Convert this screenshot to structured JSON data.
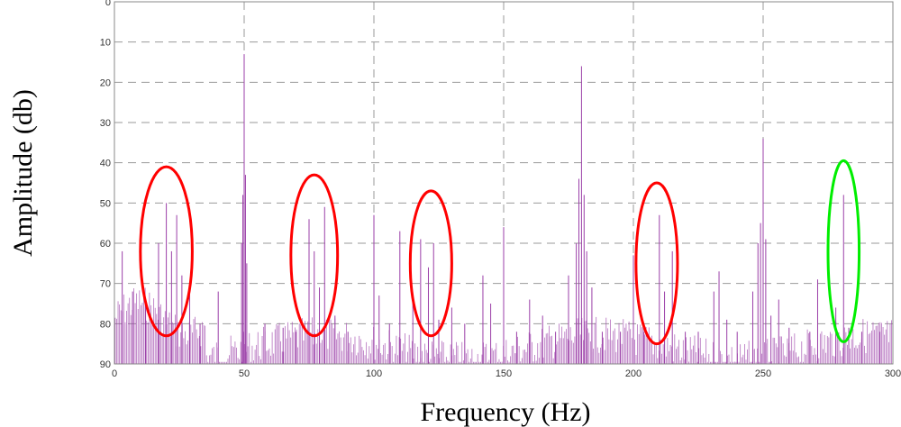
{
  "chart_data": {
    "type": "line",
    "title": "",
    "xlabel": "Frequency (Hz)",
    "ylabel": "Amplitude (db)",
    "xlim": [
      0,
      300
    ],
    "ylim": [
      0,
      90
    ],
    "y_inverted": true,
    "grid": true,
    "x_ticks": [
      "0",
      "50",
      "100",
      "150",
      "200",
      "250",
      "300"
    ],
    "y_ticks": [
      "0",
      "10",
      "20",
      "30",
      "40",
      "50",
      "60",
      "70",
      "80",
      "90"
    ],
    "series_color": "#9b3fa8",
    "peaks": [
      {
        "x": 3,
        "y": 62
      },
      {
        "x": 7,
        "y": 72
      },
      {
        "x": 12,
        "y": 74
      },
      {
        "x": 17,
        "y": 60
      },
      {
        "x": 20,
        "y": 50
      },
      {
        "x": 22,
        "y": 62
      },
      {
        "x": 24,
        "y": 53
      },
      {
        "x": 26,
        "y": 68
      },
      {
        "x": 29,
        "y": 72
      },
      {
        "x": 33,
        "y": 80
      },
      {
        "x": 40,
        "y": 72
      },
      {
        "x": 49,
        "y": 60
      },
      {
        "x": 49.5,
        "y": 48
      },
      {
        "x": 50,
        "y": 13
      },
      {
        "x": 50.5,
        "y": 43
      },
      {
        "x": 51,
        "y": 65
      },
      {
        "x": 58,
        "y": 80
      },
      {
        "x": 65,
        "y": 81
      },
      {
        "x": 70,
        "y": 82
      },
      {
        "x": 75,
        "y": 54
      },
      {
        "x": 77,
        "y": 62
      },
      {
        "x": 79,
        "y": 71
      },
      {
        "x": 81,
        "y": 51
      },
      {
        "x": 85,
        "y": 78
      },
      {
        "x": 90,
        "y": 82
      },
      {
        "x": 100,
        "y": 53
      },
      {
        "x": 102,
        "y": 73
      },
      {
        "x": 106,
        "y": 80
      },
      {
        "x": 110,
        "y": 57
      },
      {
        "x": 115,
        "y": 74
      },
      {
        "x": 118,
        "y": 59
      },
      {
        "x": 121,
        "y": 66
      },
      {
        "x": 123,
        "y": 60
      },
      {
        "x": 125,
        "y": 79
      },
      {
        "x": 130,
        "y": 76
      },
      {
        "x": 135,
        "y": 80
      },
      {
        "x": 142,
        "y": 68
      },
      {
        "x": 145,
        "y": 75
      },
      {
        "x": 150,
        "y": 56
      },
      {
        "x": 155,
        "y": 82
      },
      {
        "x": 160,
        "y": 74
      },
      {
        "x": 165,
        "y": 78
      },
      {
        "x": 170,
        "y": 82
      },
      {
        "x": 175,
        "y": 68
      },
      {
        "x": 178,
        "y": 60
      },
      {
        "x": 179,
        "y": 44
      },
      {
        "x": 180,
        "y": 16
      },
      {
        "x": 181,
        "y": 48
      },
      {
        "x": 182,
        "y": 62
      },
      {
        "x": 184,
        "y": 71
      },
      {
        "x": 188,
        "y": 82
      },
      {
        "x": 195,
        "y": 82
      },
      {
        "x": 200,
        "y": 63
      },
      {
        "x": 204,
        "y": 82
      },
      {
        "x": 210,
        "y": 53
      },
      {
        "x": 212,
        "y": 72
      },
      {
        "x": 215,
        "y": 62
      },
      {
        "x": 220,
        "y": 82
      },
      {
        "x": 225,
        "y": 82
      },
      {
        "x": 231,
        "y": 72
      },
      {
        "x": 233,
        "y": 67
      },
      {
        "x": 236,
        "y": 79
      },
      {
        "x": 240,
        "y": 82
      },
      {
        "x": 246,
        "y": 72
      },
      {
        "x": 248,
        "y": 60
      },
      {
        "x": 249,
        "y": 55
      },
      {
        "x": 250,
        "y": 34
      },
      {
        "x": 251,
        "y": 59
      },
      {
        "x": 253,
        "y": 78
      },
      {
        "x": 256,
        "y": 74
      },
      {
        "x": 260,
        "y": 81
      },
      {
        "x": 268,
        "y": 82
      },
      {
        "x": 271,
        "y": 69
      },
      {
        "x": 278,
        "y": 76
      },
      {
        "x": 281,
        "y": 48
      },
      {
        "x": 283,
        "y": 81
      },
      {
        "x": 288,
        "y": 82
      },
      {
        "x": 295,
        "y": 82
      }
    ],
    "annotations": [
      {
        "shape": "ellipse",
        "color": "#ff0000",
        "cx": 20,
        "cy": 62,
        "rx": 10,
        "ry": 21
      },
      {
        "shape": "ellipse",
        "color": "#ff0000",
        "cx": 77,
        "cy": 63,
        "rx": 9,
        "ry": 20
      },
      {
        "shape": "ellipse",
        "color": "#ff0000",
        "cx": 122,
        "cy": 65,
        "rx": 8,
        "ry": 18
      },
      {
        "shape": "ellipse",
        "color": "#ff0000",
        "cx": 209,
        "cy": 65,
        "rx": 8,
        "ry": 20
      },
      {
        "shape": "ellipse",
        "color": "#00ee00",
        "cx": 281,
        "cy": 62,
        "rx": 6,
        "ry": 22.5
      }
    ]
  }
}
